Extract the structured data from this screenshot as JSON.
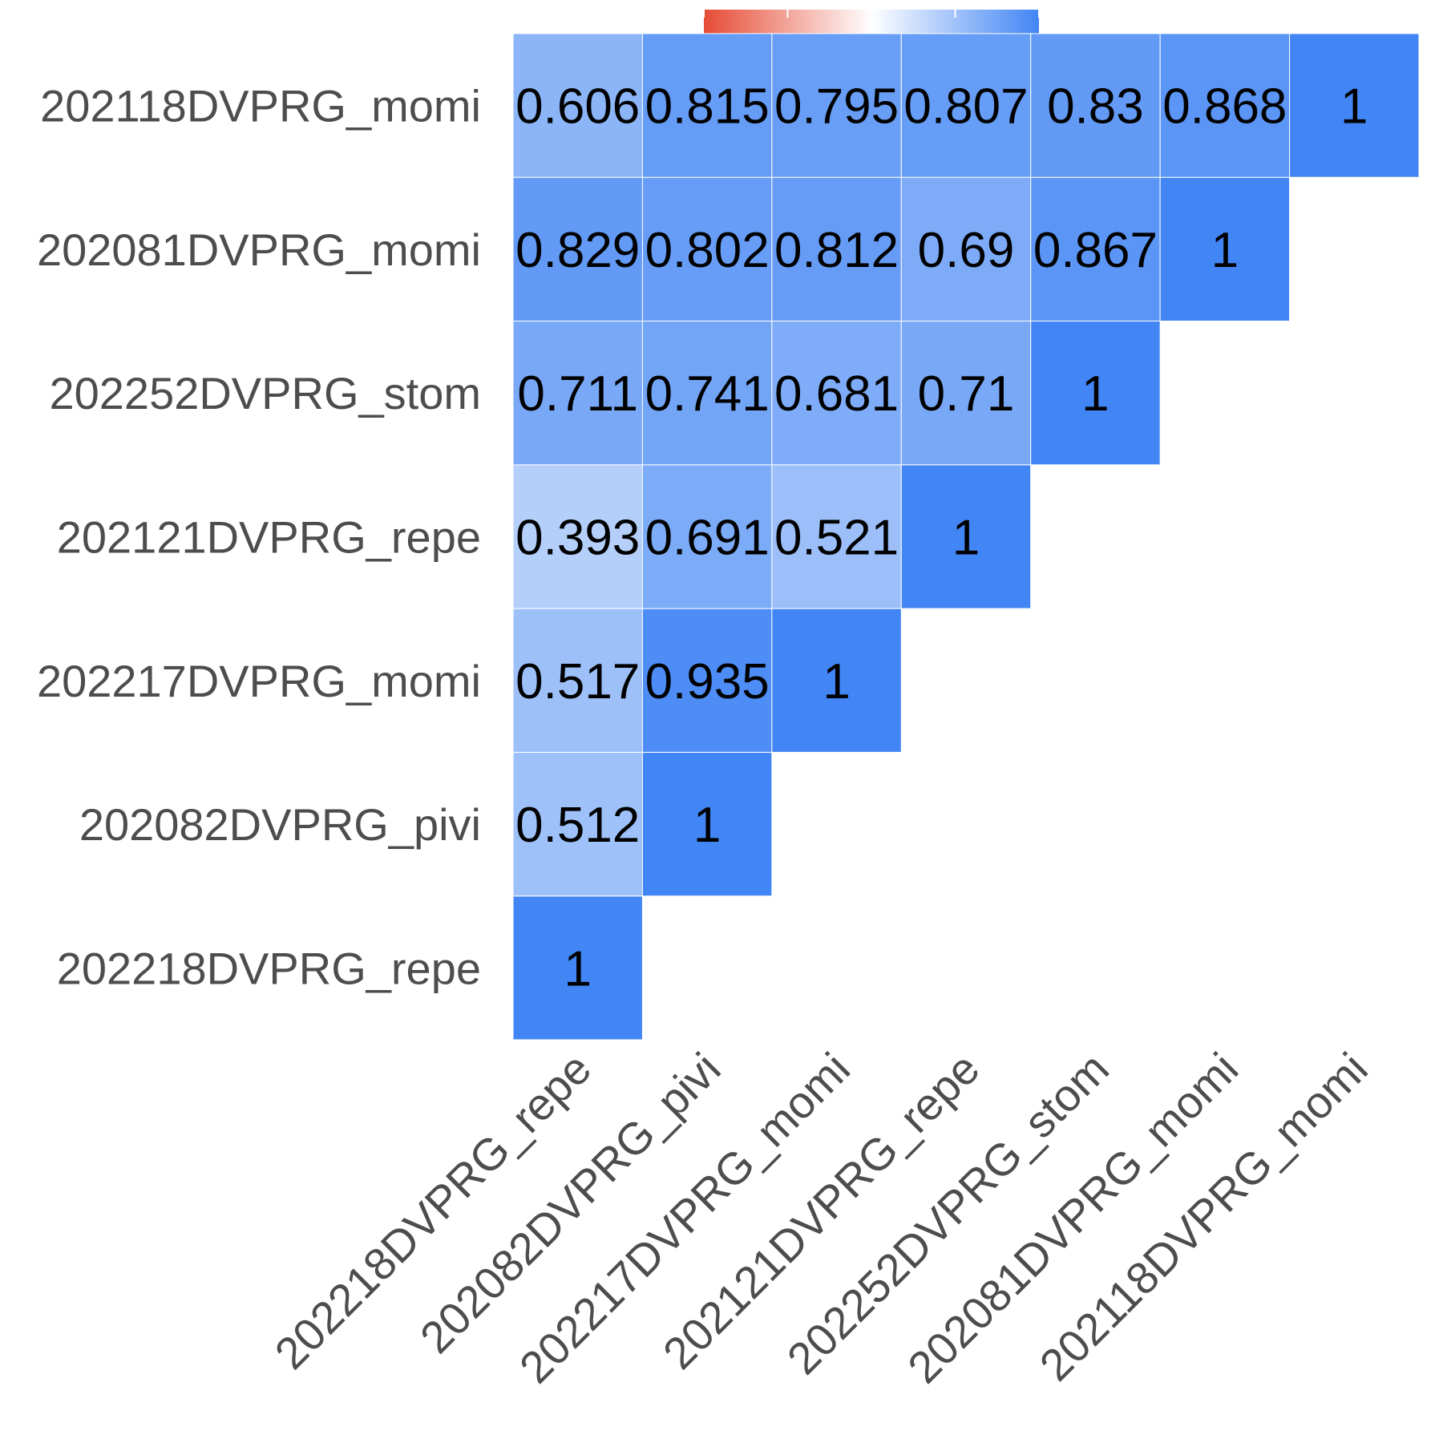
{
  "chart_data": {
    "type": "heatmap",
    "title": "",
    "xlabel": "",
    "ylabel": "",
    "labels": [
      "202218DVPRG_repe",
      "202082DVPRG_pivi",
      "202217DVPRG_momi",
      "202121DVPRG_repe",
      "202252DVPRG_stom",
      "202081DVPRG_momi",
      "202118DVPRG_momi"
    ],
    "triangle": "upper",
    "matrix": [
      [
        1,
        0.512,
        0.517,
        0.393,
        0.711,
        0.829,
        0.606
      ],
      [
        null,
        1,
        0.935,
        0.691,
        0.741,
        0.802,
        0.815
      ],
      [
        null,
        null,
        1,
        0.521,
        0.681,
        0.812,
        0.795
      ],
      [
        null,
        null,
        null,
        1,
        0.71,
        0.69,
        0.807
      ],
      [
        null,
        null,
        null,
        null,
        1,
        0.867,
        0.83
      ],
      [
        null,
        null,
        null,
        null,
        null,
        1,
        0.868
      ],
      [
        null,
        null,
        null,
        null,
        null,
        null,
        1
      ]
    ],
    "cell_text": [
      [
        "1",
        "0.512",
        "0.517",
        "0.393",
        "0.711",
        "0.829",
        "0.606"
      ],
      [
        null,
        "1",
        "0.935",
        "0.691",
        "0.741",
        "0.802",
        "0.815"
      ],
      [
        null,
        null,
        "1",
        "0.521",
        "0.681",
        "0.812",
        "0.795"
      ],
      [
        null,
        null,
        null,
        "1",
        "0.71",
        "0.69",
        "0.807"
      ],
      [
        null,
        null,
        null,
        null,
        "1",
        "0.867",
        "0.83"
      ],
      [
        null,
        null,
        null,
        null,
        null,
        "1",
        "0.868"
      ],
      [
        null,
        null,
        null,
        null,
        null,
        null,
        "1"
      ]
    ],
    "color_scale": {
      "range": [
        -1,
        1
      ],
      "low": "#E64B35",
      "mid": "#FFFFFF",
      "high": "#4285F4"
    },
    "legend": {
      "placement": "top",
      "ticks": [
        "-1.0",
        "-0.5",
        "0.0",
        "0.5",
        "1.0"
      ]
    },
    "grid": false
  }
}
